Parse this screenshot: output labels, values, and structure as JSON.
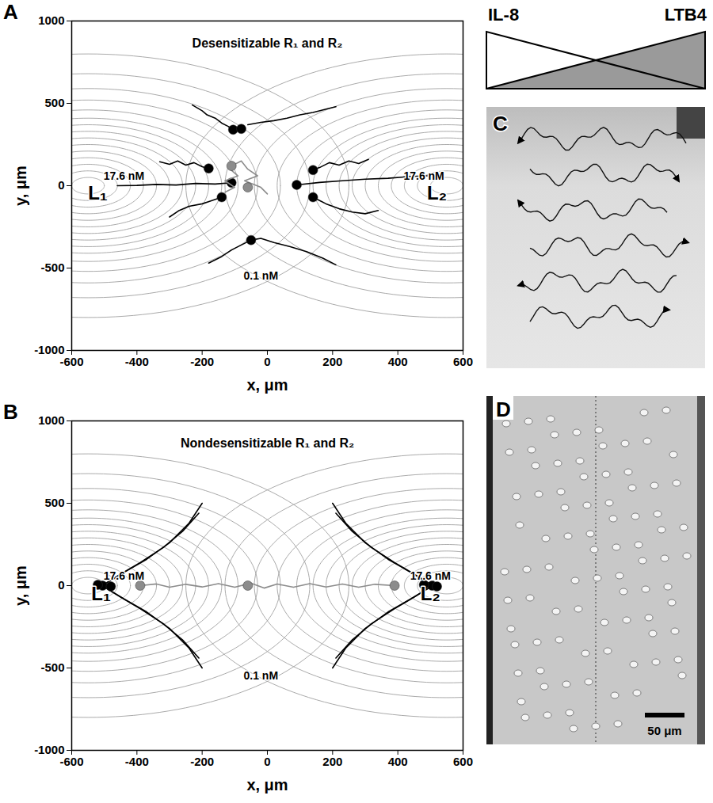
{
  "chart_data": [
    {
      "type": "line",
      "panel": "A",
      "title": "Desensitizable R₁ and R₂",
      "x_label": "x, μm",
      "y_label": "y, μm",
      "xlim": [
        -600,
        600
      ],
      "ylim": [
        -1000,
        1000
      ],
      "xticks": [
        -600,
        -400,
        -200,
        0,
        200,
        400,
        600
      ],
      "yticks": [
        -1000,
        -500,
        0,
        500,
        1000
      ],
      "contours": {
        "centers": [
          [
            -550,
            0
          ],
          [
            550,
            0
          ]
        ],
        "radii": [
          50,
          90,
          130,
          170,
          210,
          250,
          290,
          330,
          370,
          410,
          460,
          520,
          590,
          680,
          800
        ]
      },
      "source_labels": [
        {
          "text": "L₁",
          "x": -520,
          "y": -45
        },
        {
          "text": "L₂",
          "x": 520,
          "y": -45
        }
      ],
      "annotations": [
        {
          "text": "17.6 nM",
          "x": -440,
          "y": 60
        },
        {
          "text": "17.6 nM",
          "x": 480,
          "y": 60
        },
        {
          "text": "0.1 nM",
          "x": -20,
          "y": -550
        }
      ],
      "series": [
        {
          "color": "#000000",
          "tracks": [
            [
              [
                -230,
                490
              ],
              [
                -200,
                455
              ],
              [
                -185,
                430
              ],
              [
                -160,
                410
              ],
              [
                -140,
                380
              ],
              [
                -120,
                360
              ],
              [
                -105,
                340
              ]
            ],
            [
              [
                -60,
                370
              ],
              [
                -20,
                385
              ],
              [
                20,
                395
              ],
              [
                60,
                410
              ],
              [
                100,
                430
              ],
              [
                140,
                445
              ],
              [
                190,
                470
              ],
              [
                210,
                480
              ]
            ],
            [
              [
                -330,
                145
              ],
              [
                -300,
                130
              ],
              [
                -275,
                150
              ],
              [
                -250,
                125
              ],
              [
                -225,
                140
              ],
              [
                -200,
                115
              ],
              [
                -180,
                105
              ]
            ],
            [
              [
                310,
                160
              ],
              [
                280,
                135
              ],
              [
                250,
                150
              ],
              [
                220,
                125
              ],
              [
                190,
                140
              ],
              [
                160,
                110
              ],
              [
                140,
                95
              ]
            ],
            [
              [
                -460,
                0
              ],
              [
                -400,
                2
              ],
              [
                -340,
                8
              ],
              [
                -280,
                4
              ],
              [
                -220,
                14
              ],
              [
                -160,
                10
              ],
              [
                -110,
                18
              ]
            ],
            [
              [
                490,
                60
              ],
              [
                430,
                55
              ],
              [
                370,
                45
              ],
              [
                300,
                40
              ],
              [
                230,
                30
              ],
              [
                160,
                20
              ],
              [
                90,
                5
              ]
            ],
            [
              [
                -300,
                -190
              ],
              [
                -270,
                -150
              ],
              [
                -240,
                -125
              ],
              [
                -200,
                -110
              ],
              [
                -170,
                -90
              ],
              [
                -140,
                -70
              ]
            ],
            [
              [
                340,
                -150
              ],
              [
                300,
                -170
              ],
              [
                260,
                -160
              ],
              [
                220,
                -140
              ],
              [
                180,
                -110
              ],
              [
                140,
                -70
              ]
            ],
            [
              [
                -180,
                -470
              ],
              [
                -140,
                -430
              ],
              [
                -110,
                -390
              ],
              [
                -80,
                -360
              ],
              [
                -50,
                -330
              ],
              [
                -20,
                -320
              ],
              [
                20,
                -345
              ],
              [
                70,
                -370
              ],
              [
                120,
                -400
              ],
              [
                170,
                -440
              ],
              [
                210,
                -480
              ]
            ]
          ],
          "cells": [
            [
              -105,
              340
            ],
            [
              -80,
              345
            ],
            [
              -180,
              105
            ],
            [
              140,
              95
            ],
            [
              -110,
              18
            ],
            [
              90,
              5
            ],
            [
              -140,
              -70
            ],
            [
              140,
              -70
            ],
            [
              -50,
              -330
            ]
          ]
        },
        {
          "color": "#8c8c8c",
          "tracks": [
            [
              [
                -130,
                -40
              ],
              [
                -100,
                -10
              ],
              [
                -130,
                30
              ],
              [
                -90,
                60
              ],
              [
                -120,
                110
              ],
              [
                -80,
                150
              ],
              [
                -60,
                100
              ],
              [
                -30,
                60
              ],
              [
                -70,
                30
              ],
              [
                -20,
                -10
              ],
              [
                0,
                -50
              ]
            ]
          ],
          "cells": [
            [
              -110,
              120
            ],
            [
              -60,
              -10
            ]
          ]
        }
      ]
    },
    {
      "type": "line",
      "panel": "B",
      "title": "Nondesensitizable R₁ and R₂",
      "x_label": "x, μm",
      "y_label": "y, μm",
      "xlim": [
        -600,
        600
      ],
      "ylim": [
        -1000,
        1000
      ],
      "xticks": [
        -600,
        -400,
        -200,
        0,
        200,
        400,
        600
      ],
      "yticks": [
        -1000,
        -500,
        0,
        500,
        1000
      ],
      "contours": {
        "centers": [
          [
            -550,
            0
          ],
          [
            550,
            0
          ]
        ],
        "radii": [
          50,
          90,
          130,
          170,
          210,
          250,
          290,
          330,
          370,
          410,
          460,
          520,
          590,
          680,
          800
        ]
      },
      "source_labels": [
        {
          "text": "L₁",
          "x": -510,
          "y": -50
        },
        {
          "text": "L₂",
          "x": 500,
          "y": -50
        }
      ],
      "annotations": [
        {
          "text": "17.6 nM",
          "x": -440,
          "y": 60
        },
        {
          "text": "17.6 nM",
          "x": 500,
          "y": 60
        },
        {
          "text": "0.1 nM",
          "x": -20,
          "y": -550
        }
      ],
      "series": [
        {
          "color": "#000000",
          "tracks": [
            [
              [
                -200,
                500
              ],
              [
                -240,
                380
              ],
              [
                -300,
                260
              ],
              [
                -370,
                160
              ],
              [
                -440,
                80
              ],
              [
                -490,
                20
              ]
            ],
            [
              [
                -210,
                440
              ],
              [
                -260,
                330
              ],
              [
                -320,
                230
              ],
              [
                -390,
                140
              ],
              [
                -450,
                70
              ],
              [
                -495,
                15
              ]
            ],
            [
              [
                -200,
                -500
              ],
              [
                -240,
                -380
              ],
              [
                -300,
                -260
              ],
              [
                -370,
                -160
              ],
              [
                -440,
                -80
              ],
              [
                -490,
                -20
              ]
            ],
            [
              [
                -210,
                -440
              ],
              [
                -260,
                -330
              ],
              [
                -320,
                -230
              ],
              [
                -390,
                -140
              ],
              [
                -450,
                -70
              ],
              [
                -495,
                -15
              ]
            ],
            [
              [
                200,
                500
              ],
              [
                240,
                380
              ],
              [
                300,
                260
              ],
              [
                370,
                160
              ],
              [
                440,
                80
              ],
              [
                490,
                20
              ]
            ],
            [
              [
                210,
                440
              ],
              [
                260,
                330
              ],
              [
                320,
                230
              ],
              [
                390,
                140
              ],
              [
                450,
                70
              ],
              [
                495,
                15
              ]
            ],
            [
              [
                200,
                -500
              ],
              [
                240,
                -380
              ],
              [
                300,
                -260
              ],
              [
                370,
                -160
              ],
              [
                440,
                -80
              ],
              [
                490,
                -20
              ]
            ],
            [
              [
                210,
                -440
              ],
              [
                260,
                -330
              ],
              [
                320,
                -230
              ],
              [
                390,
                -140
              ],
              [
                450,
                -70
              ],
              [
                495,
                -15
              ]
            ]
          ],
          "cells": [
            [
              -505,
              0
            ],
            [
              -480,
              -5
            ],
            [
              -520,
              5
            ],
            [
              505,
              0
            ],
            [
              480,
              5
            ],
            [
              520,
              -5
            ]
          ]
        },
        {
          "color": "#8c8c8c",
          "tracks": [
            [
              [
                -390,
                0
              ],
              [
                -340,
                10
              ],
              [
                -300,
                -10
              ],
              [
                -250,
                8
              ],
              [
                -200,
                -8
              ],
              [
                -150,
                12
              ],
              [
                -100,
                -10
              ],
              [
                -50,
                15
              ],
              [
                -10,
                -15
              ],
              [
                30,
                10
              ],
              [
                80,
                -10
              ],
              [
                130,
                12
              ],
              [
                180,
                -8
              ],
              [
                230,
                10
              ],
              [
                280,
                -10
              ],
              [
                330,
                8
              ],
              [
                390,
                0
              ]
            ]
          ],
          "cells": [
            [
              -390,
              0
            ],
            [
              -60,
              0
            ],
            [
              390,
              0
            ]
          ]
        }
      ]
    }
  ],
  "gradient": {
    "labels": [
      "IL-8",
      "LTB4"
    ]
  },
  "panels": {
    "C": {
      "label": "C"
    },
    "D": {
      "label": "D",
      "scale_bar": "50 μm"
    }
  }
}
